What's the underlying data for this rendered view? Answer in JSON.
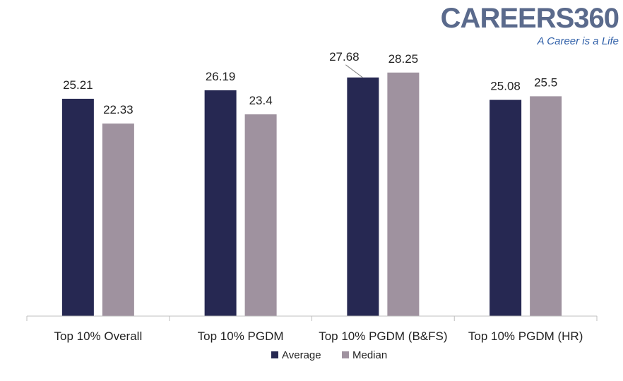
{
  "logo": {
    "wordmark": "CAREERS360",
    "tagline": "A Career is a Life",
    "color": "#5a6a8c",
    "tagline_color": "#2f5fa8"
  },
  "chart_data": {
    "type": "bar",
    "categories": [
      "Top 10% Overall",
      "Top 10% PGDM",
      "Top 10% PGDM (B&FS)",
      "Top 10% PGDM (HR)"
    ],
    "series": [
      {
        "name": "Average",
        "color": "#262852",
        "values": [
          25.21,
          26.19,
          27.68,
          25.08
        ],
        "labels": [
          "25.21",
          "26.19",
          "27.68",
          "25.08"
        ]
      },
      {
        "name": "Median",
        "color": "#9f929f",
        "values": [
          22.33,
          23.4,
          28.25,
          25.5
        ],
        "labels": [
          "22.33",
          "23.4",
          "28.25",
          "25.5"
        ]
      }
    ],
    "ylim": [
      0,
      29.3
    ],
    "grid": false,
    "legend_position": "bottom",
    "title": "",
    "xlabel": "",
    "ylabel": ""
  }
}
